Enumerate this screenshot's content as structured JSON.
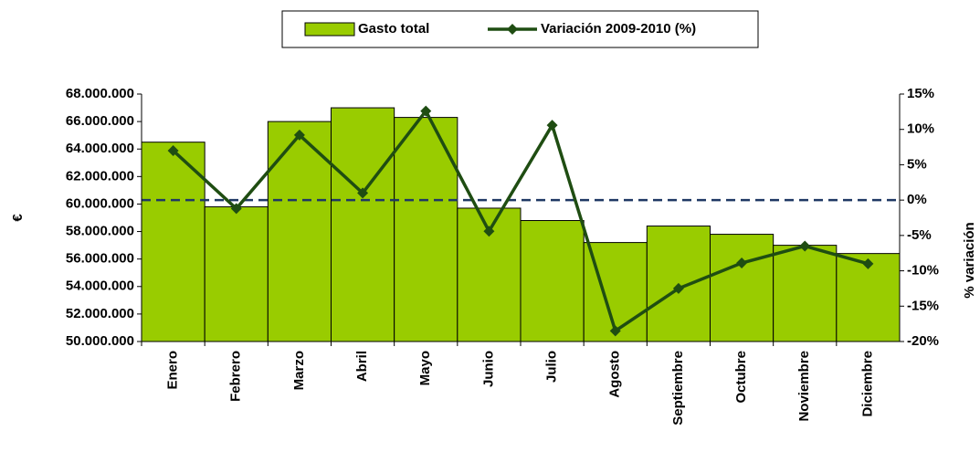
{
  "chart_data": {
    "type": "bar_line",
    "categories": [
      "Enero",
      "Febrero",
      "Marzo",
      "Abril",
      "Mayo",
      "Junio",
      "Julio",
      "Agosto",
      "Septiembre",
      "Octubre",
      "Noviembre",
      "Diciembre"
    ],
    "series": [
      {
        "name": "Gasto total",
        "type": "bar",
        "color": "#99cc00",
        "values": [
          64500000,
          59800000,
          66000000,
          67000000,
          66300000,
          59700000,
          58800000,
          57200000,
          58400000,
          57800000,
          57000000,
          56400000
        ]
      },
      {
        "name": "Variación 2009-2010 (%)",
        "type": "line",
        "axis": "y2",
        "color": "#1f4d12",
        "values": [
          7,
          -1.2,
          9.2,
          1,
          12.6,
          -4.4,
          10.6,
          -18.5,
          -12.5,
          -8.9,
          -6.5,
          -9
        ]
      }
    ],
    "ylabel": "€",
    "y2label": "% variación",
    "ylim": [
      50000000,
      68000000
    ],
    "yticks": [
      {
        "value": 50000000,
        "label": "50.000.000"
      },
      {
        "value": 52000000,
        "label": "52.000.000"
      },
      {
        "value": 54000000,
        "label": "54.000.000"
      },
      {
        "value": 56000000,
        "label": "56.000.000"
      },
      {
        "value": 58000000,
        "label": "58.000.000"
      },
      {
        "value": 60000000,
        "label": "60.000.000"
      },
      {
        "value": 62000000,
        "label": "62.000.000"
      },
      {
        "value": 64000000,
        "label": "64.000.000"
      },
      {
        "value": 66000000,
        "label": "66.000.000"
      },
      {
        "value": 68000000,
        "label": "68.000.000"
      }
    ],
    "y2lim": [
      -20,
      15
    ],
    "y2ticks": [
      {
        "value": -20,
        "label": "-20%"
      },
      {
        "value": -15,
        "label": "-15%"
      },
      {
        "value": -10,
        "label": "-10%"
      },
      {
        "value": -5,
        "label": "-5%"
      },
      {
        "value": 0,
        "label": "0%"
      },
      {
        "value": 5,
        "label": "5%"
      },
      {
        "value": 10,
        "label": "10%"
      },
      {
        "value": 15,
        "label": "15%"
      }
    ],
    "zero_line": true,
    "legend": "top"
  }
}
